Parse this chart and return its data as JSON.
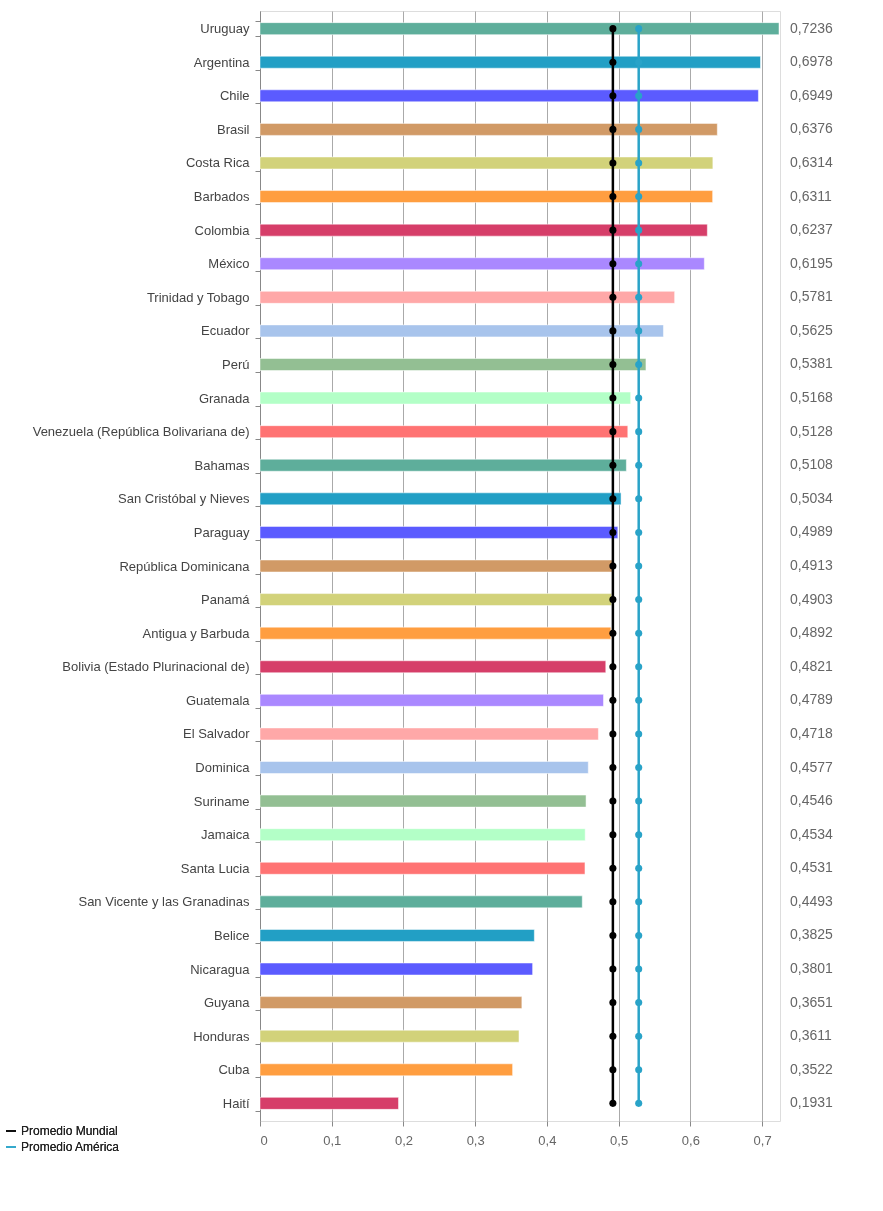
{
  "chart_data": {
    "type": "bar",
    "orientation": "horizontal",
    "categories": [
      "Uruguay",
      "Argentina",
      "Chile",
      "Brasil",
      "Costa Rica",
      "Barbados",
      "Colombia",
      "México",
      "Trinidad y Tobago",
      "Ecuador",
      "Perú",
      "Granada",
      "Venezuela (República Bolivariana de)",
      "Bahamas",
      "San Cristóbal y Nieves",
      "Paraguay",
      "República Dominicana",
      "Panamá",
      "Antigua y Barbuda",
      "Bolivia (Estado Plurinacional de)",
      "Guatemala",
      "El Salvador",
      "Dominica",
      "Suriname",
      "Jamaica",
      "Santa Lucia",
      "San Vicente y las Granadinas",
      "Belice",
      "Nicaragua",
      "Guyana",
      "Honduras",
      "Cuba",
      "Haití"
    ],
    "values": [
      0.7236,
      0.6978,
      0.6949,
      0.6376,
      0.6314,
      0.6311,
      0.6237,
      0.6195,
      0.5781,
      0.5625,
      0.5381,
      0.5168,
      0.5128,
      0.5108,
      0.5034,
      0.4989,
      0.4913,
      0.4903,
      0.4892,
      0.4821,
      0.4789,
      0.4718,
      0.4577,
      0.4546,
      0.4534,
      0.4531,
      0.4493,
      0.3825,
      0.3801,
      0.3651,
      0.3611,
      0.3522,
      0.1931
    ],
    "value_labels": [
      "0,7236",
      "0,6978",
      "0,6949",
      "0,6376",
      "0,6314",
      "0,6311",
      "0,6237",
      "0,6195",
      "0,5781",
      "0,5625",
      "0,5381",
      "0,5168",
      "0,5128",
      "0,5108",
      "0,5034",
      "0,4989",
      "0,4913",
      "0,4903",
      "0,4892",
      "0,4821",
      "0,4789",
      "0,4718",
      "0,4577",
      "0,4546",
      "0,4534",
      "0,4531",
      "0,4493",
      "0,3825",
      "0,3801",
      "0,3651",
      "0,3611",
      "0,3522",
      "0,1931"
    ],
    "colors": [
      "#5eae9b",
      "#229fc5",
      "#5b5bff",
      "#d19a66",
      "#d2d27a",
      "#ff9e40",
      "#d63e69",
      "#aa88ff",
      "#ffa8a8",
      "#a8c4ec",
      "#93bf93",
      "#b3ffc7",
      "#ff7373",
      "#5eae9b",
      "#229fc5",
      "#5b5bff",
      "#d19a66",
      "#d2d27a",
      "#ff9e40",
      "#d63e69",
      "#aa88ff",
      "#ffa8a8",
      "#a8c4ec",
      "#93bf93",
      "#b3ffc7",
      "#ff7373",
      "#5eae9b",
      "#229fc5",
      "#5b5bff",
      "#d19a66",
      "#d2d27a",
      "#ff9e40",
      "#d63e69"
    ],
    "series": [
      {
        "name": "Promedio Mundial",
        "type": "line",
        "color": "#000000",
        "values": [
          0.492,
          0.492,
          0.492,
          0.492,
          0.492,
          0.492,
          0.492,
          0.492,
          0.492,
          0.492,
          0.492,
          0.492,
          0.492,
          0.492,
          0.492,
          0.492,
          0.492,
          0.492,
          0.492,
          0.492,
          0.492,
          0.492,
          0.492,
          0.492,
          0.492,
          0.492,
          0.492,
          0.492,
          0.492,
          0.492,
          0.492,
          0.492,
          0.492
        ]
      },
      {
        "name": "Promedio América",
        "type": "line",
        "color": "#29a3c8",
        "values": [
          0.528,
          0.528,
          0.528,
          0.528,
          0.528,
          0.528,
          0.528,
          0.528,
          0.528,
          0.528,
          0.528,
          0.528,
          0.528,
          0.528,
          0.528,
          0.528,
          0.528,
          0.528,
          0.528,
          0.528,
          0.528,
          0.528,
          0.528,
          0.528,
          0.528,
          0.528,
          0.528,
          0.528,
          0.528,
          0.528,
          0.528,
          0.528,
          0.528
        ]
      }
    ],
    "xlim": [
      0,
      0.725
    ],
    "xticks": [
      0,
      {
        "value": 0.1,
        "label": "0,1"
      },
      {
        "value": 0.2,
        "label": "0,2"
      },
      {
        "value": 0.3,
        "label": "0,3"
      },
      {
        "value": 0.4,
        "label": "0,4"
      },
      {
        "value": 0.5,
        "label": "0,5"
      },
      {
        "value": 0.6,
        "label": "0,6"
      },
      {
        "value": 0.7,
        "label": "0,7"
      }
    ],
    "grid": "x",
    "legend": "bottom left",
    "marker": "circle",
    "line_style": "solid"
  }
}
